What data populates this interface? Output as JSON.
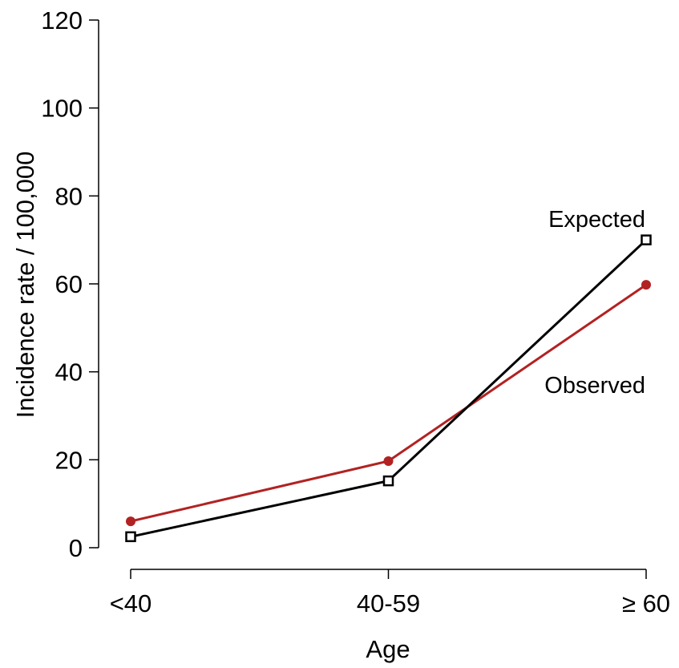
{
  "chart_data": {
    "type": "line",
    "categories": [
      "<40",
      "40-59",
      "≥ 60"
    ],
    "xlabel": "Age",
    "ylabel": "Incidence rate / 100,000",
    "ylim": [
      0,
      120
    ],
    "yticks": [
      0,
      20,
      40,
      60,
      80,
      100,
      120
    ],
    "ytick_labels": [
      "0",
      "20",
      "40",
      "60",
      "80",
      "100",
      "120"
    ],
    "grid": false,
    "legend": "none",
    "series": [
      {
        "name": "Observed",
        "values": [
          6,
          19.7,
          59.8
        ],
        "color": "#b22222",
        "marker": "filled-circle"
      },
      {
        "name": "Expected",
        "values": [
          2.5,
          15.2,
          70
        ],
        "color": "#000000",
        "marker": "open-square"
      }
    ]
  }
}
